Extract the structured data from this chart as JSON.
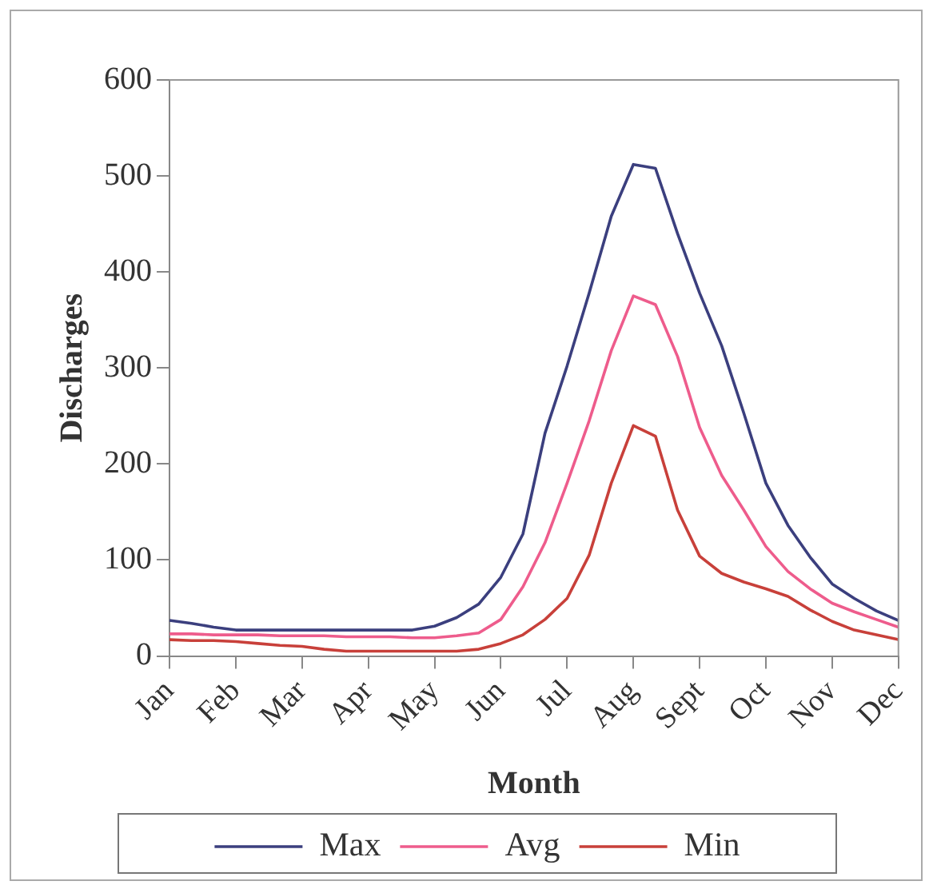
{
  "chart_data": {
    "type": "line",
    "xlabel": "Month",
    "ylabel": "Discharges",
    "categories": [
      "Jan",
      null,
      null,
      "Feb",
      null,
      null,
      "Mar",
      null,
      null,
      "Apr",
      null,
      null,
      "May",
      null,
      null,
      "Jun",
      null,
      null,
      "Jul",
      null,
      null,
      "Aug",
      null,
      null,
      "Sept",
      null,
      null,
      "Oct",
      null,
      null,
      "Nov",
      null,
      null,
      "Dec"
    ],
    "ylim": [
      0,
      600
    ],
    "yticks": [
      0,
      100,
      200,
      300,
      400,
      500,
      600
    ],
    "grid": false,
    "legend": "bottom",
    "marker": "none",
    "line_style": "solid",
    "series": [
      {
        "name": "Max",
        "color": "#3b3f7e",
        "values": [
          37,
          34,
          30,
          27,
          27,
          27,
          27,
          27,
          27,
          27,
          27,
          27,
          31,
          40,
          54,
          82,
          127,
          232,
          302,
          378,
          458,
          512,
          508,
          440,
          378,
          323,
          253,
          180,
          136,
          103,
          75,
          60,
          47,
          37
        ]
      },
      {
        "name": "Avg",
        "color": "#ee5c8c",
        "values": [
          23,
          23,
          22,
          22,
          22,
          21,
          21,
          21,
          20,
          20,
          20,
          19,
          19,
          21,
          24,
          38,
          72,
          118,
          180,
          245,
          318,
          375,
          366,
          312,
          238,
          188,
          152,
          114,
          88,
          70,
          55,
          46,
          38,
          30
        ]
      },
      {
        "name": "Min",
        "color": "#c8403a",
        "values": [
          17,
          16,
          16,
          15,
          13,
          11,
          10,
          7,
          5,
          5,
          5,
          5,
          5,
          5,
          7,
          13,
          22,
          38,
          60,
          105,
          180,
          240,
          229,
          152,
          104,
          86,
          77,
          70,
          62,
          48,
          36,
          27,
          22,
          17
        ]
      }
    ]
  }
}
